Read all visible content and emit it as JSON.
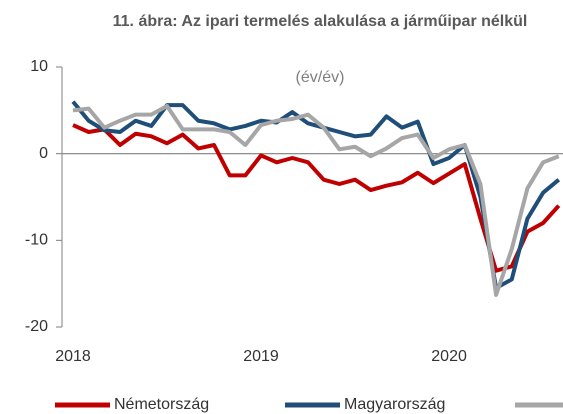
{
  "chart_data": {
    "type": "line",
    "title": "11. ábra: Az ipari termelés alakulása a járműipar nélkül",
    "subtitle": "(év/év)",
    "categories": [
      "2018",
      null,
      null,
      null,
      null,
      null,
      null,
      null,
      null,
      null,
      null,
      null,
      "2019",
      null,
      null,
      null,
      null,
      null,
      null,
      null,
      null,
      null,
      null,
      null,
      "2020",
      null,
      null,
      null,
      null,
      null,
      null,
      null
    ],
    "series": [
      {
        "name": "Németország",
        "color": "#c00000",
        "values": [
          3.3,
          2.5,
          2.8,
          1.0,
          2.3,
          2.0,
          1.2,
          2.2,
          0.6,
          1.0,
          -2.5,
          -2.5,
          -0.2,
          -1.0,
          -0.5,
          -1.0,
          -3.0,
          -3.5,
          -3.0,
          -4.2,
          -3.7,
          -3.3,
          -2.2,
          -3.4,
          -2.3,
          -1.2,
          -7.5,
          -13.5,
          -13.0,
          -9.0,
          -8.0,
          -6.0
        ]
      },
      {
        "name": "Magyarország",
        "color": "#1f4e79",
        "values": [
          6.0,
          3.8,
          2.7,
          2.5,
          3.8,
          3.2,
          5.6,
          5.6,
          3.8,
          3.5,
          2.8,
          3.2,
          3.8,
          3.6,
          4.8,
          3.5,
          3.0,
          2.5,
          2.0,
          2.2,
          4.3,
          3.0,
          3.7,
          -1.2,
          -0.5,
          1.0,
          -5.0,
          -15.5,
          -14.5,
          -7.5,
          -4.5,
          -3.0
        ]
      },
      {
        "color": "#a6a6a6",
        "values": [
          5.0,
          5.2,
          3.0,
          3.8,
          4.5,
          4.5,
          5.5,
          2.8,
          2.8,
          2.8,
          2.5,
          1.0,
          3.3,
          3.8,
          4.0,
          4.5,
          3.0,
          0.5,
          0.8,
          -0.3,
          0.6,
          1.8,
          2.2,
          -0.5,
          0.5,
          1.0,
          -3.5,
          -16.3,
          -11.0,
          -4.0,
          -1.0,
          -0.3
        ]
      }
    ],
    "ylim": [
      -20,
      10
    ],
    "yticks": [
      -20,
      -10,
      0,
      10
    ]
  }
}
